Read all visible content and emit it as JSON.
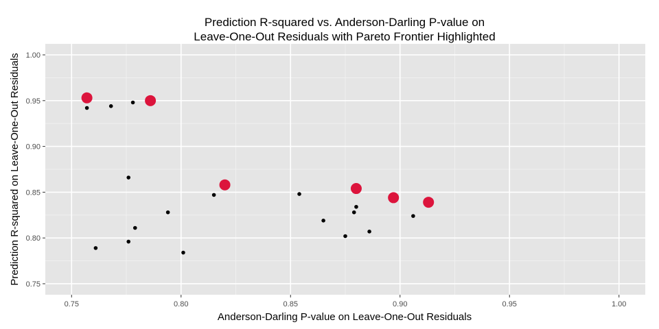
{
  "chart_data": {
    "type": "scatter",
    "title_lines": [
      "Prediction R-squared vs. Anderson-Darling P-value on",
      "Leave-One-Out Residuals with Pareto Frontier Highlighted"
    ],
    "xlabel": "Anderson-Darling P-value on Leave-One-Out Residuals",
    "ylabel": "Prediction R-squared on Leave-One-Out Residuals",
    "xlim": [
      0.738,
      1.012
    ],
    "ylim": [
      0.738,
      1.012
    ],
    "x_ticks": [
      "0.75",
      "0.80",
      "0.85",
      "0.90",
      "0.95",
      "1.00"
    ],
    "y_ticks": [
      "0.75",
      "0.80",
      "0.85",
      "0.90",
      "0.95",
      "1.00"
    ],
    "grid": true,
    "colors": {
      "panel": "#e5e5e5",
      "grid_major": "#ffffff",
      "grid_minor": "#f2f2f2",
      "point": "#000000",
      "frontier": "#dc143c"
    },
    "series": [
      {
        "x": [
          0.757,
          0.768,
          0.778,
          0.776,
          0.815,
          0.794,
          0.779,
          0.776,
          0.761,
          0.801,
          0.854,
          0.865,
          0.88,
          0.879,
          0.875,
          0.886,
          0.906
        ],
        "y": [
          0.942,
          0.944,
          0.948,
          0.866,
          0.847,
          0.828,
          0.811,
          0.796,
          0.789,
          0.784,
          0.848,
          0.819,
          0.834,
          0.828,
          0.802,
          0.807,
          0.824
        ]
      },
      {
        "x": [
          0.757,
          0.786,
          0.82,
          0.88,
          0.897,
          0.913
        ],
        "y": [
          0.953,
          0.95,
          0.858,
          0.854,
          0.844,
          0.839
        ]
      }
    ]
  }
}
